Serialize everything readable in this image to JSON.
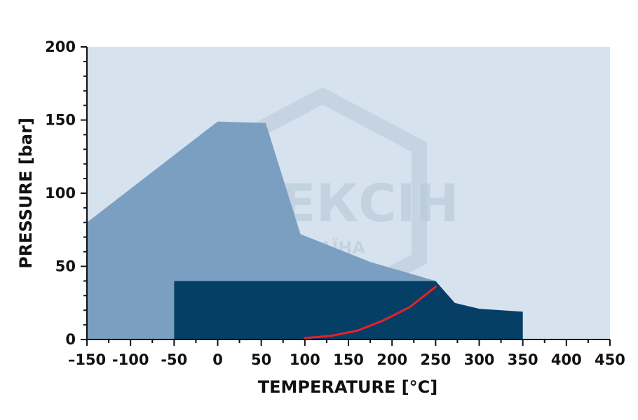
{
  "chart_data": {
    "type": "area",
    "xlabel": "TEMPERATURE [°C]",
    "ylabel": "PRESSURE [bar]",
    "xlim": [
      -150,
      450
    ],
    "ylim": [
      0,
      200
    ],
    "xticks": [
      -150,
      -100,
      -50,
      0,
      50,
      100,
      150,
      200,
      250,
      300,
      350,
      400,
      450
    ],
    "xtick_labels": [
      "–150",
      "-100",
      "-50",
      "0",
      "50",
      "100",
      "150",
      "200",
      "250",
      "300",
      "350",
      "400",
      "450"
    ],
    "yticks": [
      0,
      50,
      100,
      150,
      200
    ],
    "grid": false,
    "series": [
      {
        "type": "area",
        "color": "#7a9fc0",
        "x": [
          -150,
          0,
          55,
          95,
          175,
          250,
          -50,
          -50,
          -150
        ],
        "y": [
          80,
          149,
          148,
          72,
          53,
          40,
          40,
          0,
          0
        ]
      },
      {
        "type": "area",
        "color": "#053f66",
        "x": [
          -50,
          250,
          272,
          300,
          350,
          350,
          -50
        ],
        "y": [
          40,
          40,
          25,
          21,
          19,
          0,
          0
        ]
      },
      {
        "type": "line",
        "color": "#e8202a",
        "x": [
          100,
          130,
          160,
          190,
          220,
          250
        ],
        "y": [
          1,
          2.5,
          6,
          13,
          22,
          36
        ]
      }
    ],
    "watermark": {
      "brand": "ФЛЕКСІН",
      "sub": "УКРАЇНА"
    },
    "colors": {
      "plot_background": "#d6e2ee",
      "axis": "#111111"
    }
  }
}
